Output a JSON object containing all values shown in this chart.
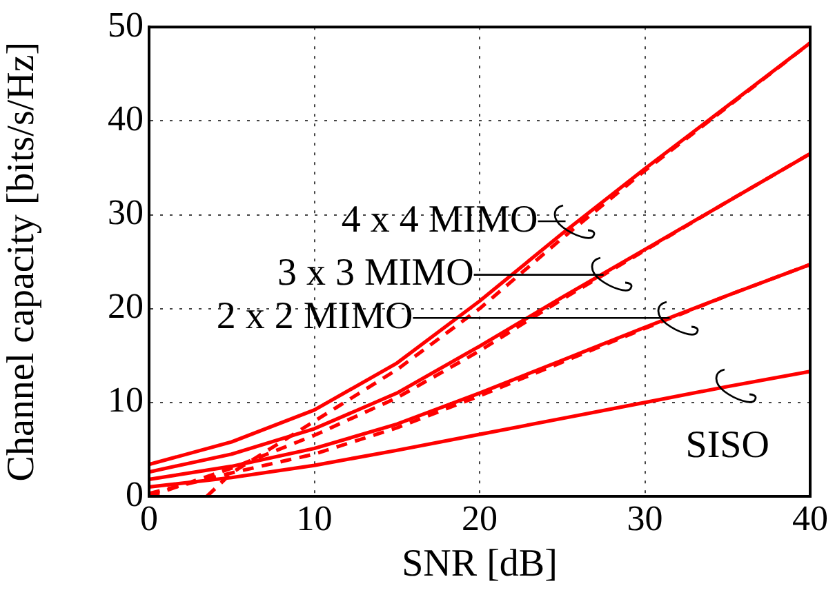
{
  "chart_data": {
    "type": "line",
    "xlabel": "SNR [dB]",
    "ylabel": "Channel capacity [bits/s/Hz]",
    "x": [
      0,
      5,
      10,
      15,
      20,
      25,
      30,
      35,
      40
    ],
    "series": [
      {
        "color": "#ff0000",
        "values": [
          1.0,
          2.0,
          3.3,
          4.9,
          6.6,
          8.3,
          10.0,
          11.7,
          13.3
        ]
      },
      {
        "color": "#ff0000",
        "values": [
          1.8,
          3.2,
          5.1,
          7.7,
          11.0,
          14.5,
          18.0,
          21.4,
          24.7
        ]
      },
      {
        "color": "#ff0000",
        "values": [
          2.6,
          4.5,
          7.2,
          11.0,
          16.0,
          21.2,
          26.3,
          31.4,
          36.5
        ]
      },
      {
        "color": "#ff0000",
        "values": [
          3.4,
          5.8,
          9.2,
          14.2,
          20.8,
          28.0,
          34.9,
          41.6,
          48.3
        ]
      },
      {
        "color": "#ff0000",
        "line_style": "dashed",
        "values": [
          0.3,
          2.5,
          4.5,
          7.3,
          10.7,
          14.3,
          17.9,
          21.4,
          24.7
        ]
      },
      {
        "color": "#ff0000",
        "line_style": "dashed",
        "values": [
          0.0,
          3.0,
          6.5,
          10.5,
          15.5,
          21.0,
          26.2,
          31.4,
          36.5
        ]
      },
      {
        "color": "#ff0000",
        "line_style": "dashed",
        "x": [
          3.5,
          5,
          10,
          15,
          20,
          25,
          30,
          35,
          40
        ],
        "values": [
          0.0,
          2.5,
          8.0,
          13.5,
          20.0,
          27.5,
          34.7,
          41.5,
          48.3
        ]
      }
    ],
    "annotations": [
      {
        "text": "4 x 4 MIMO",
        "x": 25.2,
        "y": 29.3
      },
      {
        "text": "3 x 3 MIMO",
        "x": 27.5,
        "y": 23.6
      },
      {
        "text": "2 x 2 MIMO",
        "x": 31.5,
        "y": 19.0
      },
      {
        "text": "SISO",
        "x": 35,
        "y": 11.7
      }
    ],
    "xlim": [
      0,
      40
    ],
    "ylim": [
      0,
      50
    ],
    "xticks": [
      0,
      10,
      20,
      30,
      40
    ],
    "yticks": [
      0,
      10,
      20,
      30,
      40,
      50
    ],
    "grid": true,
    "marker": "none",
    "line_style": "solid"
  }
}
